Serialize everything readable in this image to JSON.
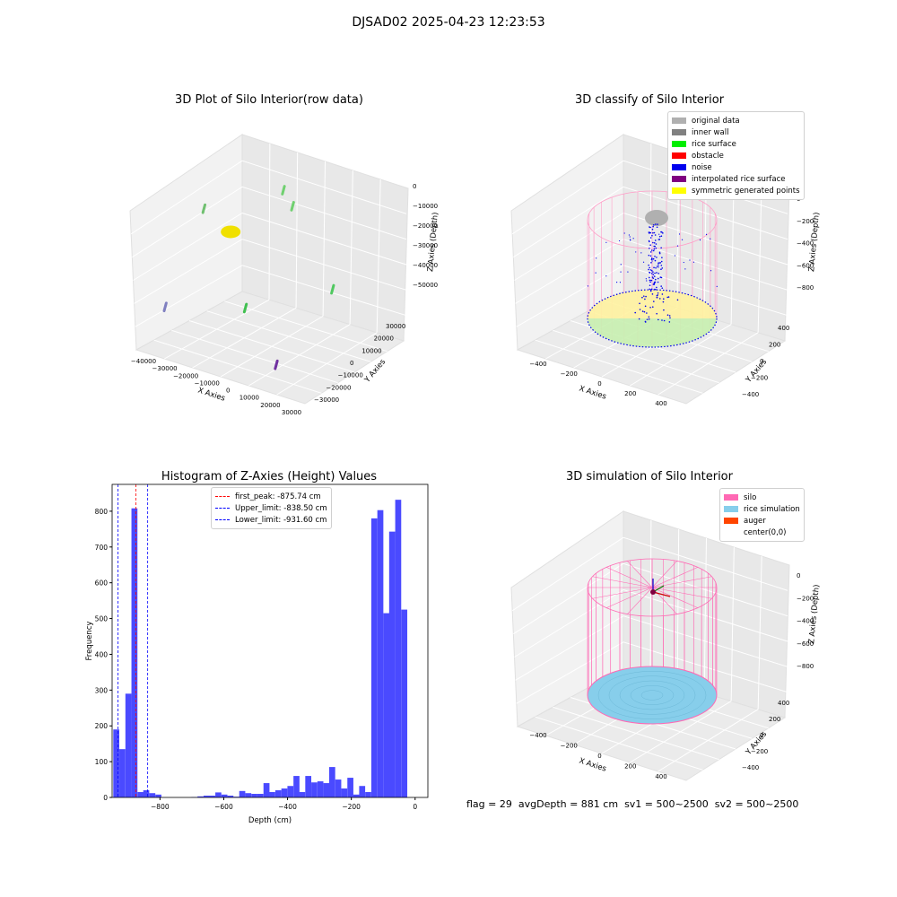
{
  "figure_title": "DJSAD02 2025-04-23 12:23:53",
  "footer": {
    "flag": "flag = 29",
    "avg_depth": "avgDepth = 881 cm",
    "sv1": "sv1 = 500~2500",
    "sv2": "sv2 = 500~2500"
  },
  "colors": {
    "silo_pink": "#ff69b4",
    "rice_blue": "#87ceeb",
    "histogram_bar": "#4a4aff"
  },
  "chart_data": [
    {
      "type": "scatter",
      "title": "3D Plot of Silo Interior(row data)",
      "xlabel": "X Axies",
      "ylabel": "Y Axies",
      "zlabel": "Z Axies (Depth)",
      "x_ticks": [
        "−40000",
        "−30000",
        "−20000",
        "−10000",
        "0",
        "10000",
        "20000",
        "30000"
      ],
      "y_ticks": [
        "−30000",
        "−20000",
        "−10000",
        "0",
        "10000",
        "20000",
        "30000"
      ],
      "z_ticks": [
        "0",
        "−10000",
        "−20000",
        "−30000",
        "−40000",
        "−50000"
      ],
      "points": [
        {
          "x": -27000,
          "y": 5000,
          "z": -18000,
          "color": "#f0e000"
        },
        {
          "x": -12000,
          "y": 20000,
          "z": -3000,
          "color": "#70d070"
        },
        {
          "x": -9000,
          "y": 22000,
          "z": -9000,
          "color": "#70d070"
        },
        {
          "x": -35000,
          "y": -2000,
          "z": -9000,
          "color": "#70c070"
        },
        {
          "x": -10000,
          "y": -10000,
          "z": -38000,
          "color": "#40c050"
        },
        {
          "x": 18000,
          "y": 10000,
          "z": -30000,
          "color": "#50c860"
        },
        {
          "x": -38000,
          "y": -25000,
          "z": -40000,
          "color": "#8080c0"
        },
        {
          "x": 10000,
          "y": -18000,
          "z": -52000,
          "color": "#7030a0"
        }
      ]
    },
    {
      "type": "scatter",
      "title": "3D classify of Silo Interior",
      "xlabel": "X Axies",
      "ylabel": "Y Axies",
      "zlabel": "Z Axies (Depth)",
      "x_ticks": [
        "−400",
        "−200",
        "0",
        "200",
        "400"
      ],
      "y_ticks": [
        "−400",
        "−200",
        "0",
        "200",
        "400"
      ],
      "z_ticks": [
        "0",
        "−200",
        "−400",
        "−600",
        "−800"
      ],
      "legend": [
        {
          "label": "original data",
          "color": "#b0b0b0"
        },
        {
          "label": "inner wall",
          "color": "#808080"
        },
        {
          "label": "rice surface",
          "color": "#00ee00"
        },
        {
          "label": "obstacle",
          "color": "#ff0000"
        },
        {
          "label": "noise",
          "color": "#0000ee"
        },
        {
          "label": "interpolated rice surface",
          "color": "#800080"
        },
        {
          "label": "symmetric generated points",
          "color": "#ffff00"
        }
      ],
      "silo_radius": 450,
      "silo_depth": -880
    },
    {
      "type": "bar",
      "title": "Histogram of Z-Axies (Height) Values",
      "xlabel": "Depth (cm)",
      "ylabel": "Frequency",
      "xlim": [
        -950,
        40
      ],
      "ylim": [
        0,
        875
      ],
      "x_ticks": [
        -800,
        -600,
        -400,
        -200,
        0
      ],
      "x_tick_labels": [
        "−800",
        "−600",
        "−400",
        "−200",
        "0"
      ],
      "y_ticks": [
        0,
        100,
        200,
        300,
        400,
        500,
        600,
        700,
        800
      ],
      "bin_width": 18.8,
      "bins": [
        {
          "x": -937,
          "v": 190
        },
        {
          "x": -918,
          "v": 135
        },
        {
          "x": -899,
          "v": 290
        },
        {
          "x": -880,
          "v": 808
        },
        {
          "x": -861,
          "v": 15
        },
        {
          "x": -843,
          "v": 20
        },
        {
          "x": -824,
          "v": 12
        },
        {
          "x": -805,
          "v": 8
        },
        {
          "x": -692,
          "v": 1
        },
        {
          "x": -673,
          "v": 3
        },
        {
          "x": -654,
          "v": 5
        },
        {
          "x": -636,
          "v": 5
        },
        {
          "x": -617,
          "v": 14
        },
        {
          "x": -598,
          "v": 8
        },
        {
          "x": -579,
          "v": 5
        },
        {
          "x": -560,
          "v": 2
        },
        {
          "x": -542,
          "v": 18
        },
        {
          "x": -523,
          "v": 12
        },
        {
          "x": -504,
          "v": 10
        },
        {
          "x": -485,
          "v": 10
        },
        {
          "x": -466,
          "v": 40
        },
        {
          "x": -448,
          "v": 15
        },
        {
          "x": -429,
          "v": 20
        },
        {
          "x": -410,
          "v": 25
        },
        {
          "x": -391,
          "v": 32
        },
        {
          "x": -372,
          "v": 60
        },
        {
          "x": -354,
          "v": 15
        },
        {
          "x": -335,
          "v": 60
        },
        {
          "x": -316,
          "v": 42
        },
        {
          "x": -297,
          "v": 45
        },
        {
          "x": -278,
          "v": 40
        },
        {
          "x": -260,
          "v": 85
        },
        {
          "x": -241,
          "v": 50
        },
        {
          "x": -222,
          "v": 25
        },
        {
          "x": -203,
          "v": 55
        },
        {
          "x": -184,
          "v": 8
        },
        {
          "x": -166,
          "v": 32
        },
        {
          "x": -147,
          "v": 15
        },
        {
          "x": -128,
          "v": 780
        },
        {
          "x": -109,
          "v": 803
        },
        {
          "x": -90,
          "v": 515
        },
        {
          "x": -72,
          "v": 743
        },
        {
          "x": -53,
          "v": 832
        },
        {
          "x": -34,
          "v": 525
        },
        {
          "x": -15,
          "v": 0
        }
      ],
      "lines": [
        {
          "label": "first_peak: -875.74 cm",
          "x": -875.74,
          "color": "#ff0000"
        },
        {
          "label": "Upper_limit: -838.50 cm",
          "x": -838.5,
          "color": "#0000ff"
        },
        {
          "label": "Lower_limit: -931.60 cm",
          "x": -931.6,
          "color": "#0000ff"
        }
      ]
    },
    {
      "type": "scatter",
      "title": "3D simulation of Silo Interior",
      "xlabel": "X Axies",
      "ylabel": "Y Axies",
      "zlabel": "Z Axies (Depth)",
      "x_ticks": [
        "−400",
        "−200",
        "0",
        "200",
        "400"
      ],
      "y_ticks": [
        "−400",
        "−200",
        "0",
        "200",
        "400"
      ],
      "z_ticks": [
        "0",
        "−200",
        "−400",
        "−600",
        "−800"
      ],
      "legend": [
        {
          "label": "silo",
          "color": "#ff69b4"
        },
        {
          "label": "rice simulation",
          "color": "#87ceeb"
        },
        {
          "label": "auger",
          "color": "#ff4500"
        },
        {
          "label": "center(0,0)",
          "color": "#ffffff"
        }
      ],
      "silo_radius": 450,
      "rice_depth": -881
    }
  ]
}
